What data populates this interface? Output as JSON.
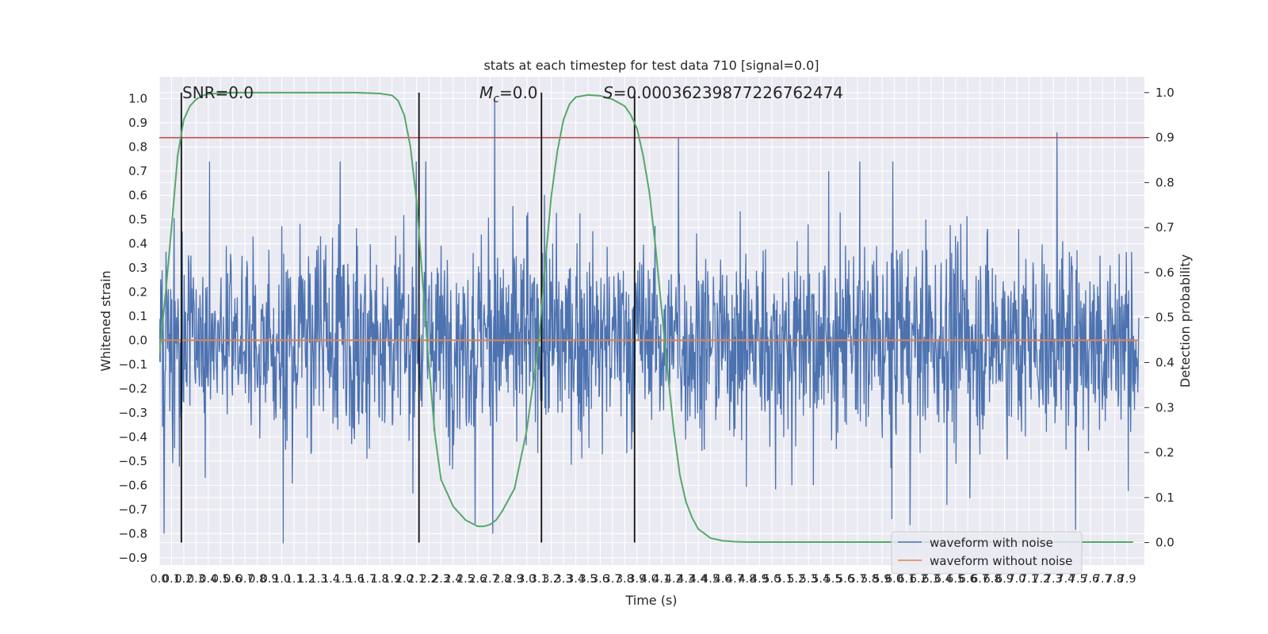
{
  "chart_data": {
    "type": "line",
    "title": "stats at each timestep for test data 710 [signal=0.0]",
    "xlabel": "Time (s)",
    "ylabel_left": "Whitened strain",
    "ylabel_right": "Detection probability",
    "xlim": [
      0.0,
      8.0
    ],
    "ylim_left": [
      -0.93,
      1.09
    ],
    "ylim_right": [
      -0.05,
      1.035
    ],
    "left_ticks": [
      1.0,
      0.9,
      0.8,
      0.7,
      0.6,
      0.5,
      0.4,
      0.3,
      0.2,
      0.1,
      0.0,
      -0.1,
      -0.2,
      -0.3,
      -0.4,
      -0.5,
      -0.6,
      -0.7,
      -0.8,
      -0.9
    ],
    "left_tick_labels": [
      "1.0",
      "0.9",
      "0.8",
      "0.7",
      "0.6",
      "0.5",
      "0.4",
      "0.3",
      "0.2",
      "0.1",
      "0.0",
      "−0.1",
      "−0.2",
      "−0.3",
      "−0.4",
      "−0.5",
      "−0.6",
      "−0.7",
      "−0.8",
      "−0.9"
    ],
    "right_ticks": [
      1.0,
      0.9,
      0.8,
      0.7,
      0.6,
      0.5,
      0.4,
      0.3,
      0.2,
      0.1,
      0.0
    ],
    "right_tick_labels": [
      "1.0",
      "0.9",
      "0.8",
      "0.7",
      "0.6",
      "0.5",
      "0.4",
      "0.3",
      "0.2",
      "0.1",
      "0.0"
    ],
    "x_ticks_step": 0.1,
    "x_ticks_count": 80,
    "grid": true,
    "legend_position": "lower-right",
    "annotations": {
      "snr": "SNR=0.0",
      "mc_symbol": "M",
      "mc_sub": "c",
      "mc_value": "=0.0",
      "s_symbol": "S",
      "s_value": "=0.000362398772267624​74"
    },
    "series": [
      {
        "name": "waveform with noise",
        "color": "#4c72b0",
        "kind": "noise",
        "axis": "left",
        "sample_count": 2048,
        "amplitude_envelope": [
          -0.85,
          1.0
        ],
        "notable_peaks": [
          {
            "t": 2.74,
            "y": 1.0
          },
          {
            "t": 4.24,
            "y": 0.84
          },
          {
            "t": 7.33,
            "y": 0.86
          },
          {
            "t": 1.01,
            "y": -0.84
          },
          {
            "t": 2.58,
            "y": -0.76
          },
          {
            "t": 5.98,
            "y": -0.74
          }
        ]
      },
      {
        "name": "waveform without noise",
        "color": "#dd8452",
        "axis": "left",
        "x": [
          0.0,
          8.0
        ],
        "y": [
          0.0,
          0.0
        ]
      },
      {
        "name": "detection probability",
        "color": "#55a868",
        "axis": "right",
        "x": [
          0.0,
          0.05,
          0.1,
          0.15,
          0.2,
          0.25,
          0.3,
          0.35,
          0.4,
          0.5,
          0.6,
          0.7,
          0.8,
          1.0,
          1.2,
          1.4,
          1.6,
          1.8,
          1.9,
          1.95,
          2.0,
          2.05,
          2.1,
          2.15,
          2.2,
          2.25,
          2.3,
          2.4,
          2.5,
          2.6,
          2.65,
          2.7,
          2.75,
          2.8,
          2.9,
          3.0,
          3.1,
          3.15,
          3.2,
          3.25,
          3.3,
          3.35,
          3.4,
          3.5,
          3.6,
          3.7,
          3.8,
          3.85,
          3.9,
          3.95,
          4.0,
          4.05,
          4.1,
          4.15,
          4.2,
          4.25,
          4.3,
          4.35,
          4.4,
          4.5,
          4.6,
          4.7,
          4.8,
          5.0,
          5.5,
          6.0,
          6.5,
          7.0,
          7.5,
          7.95
        ],
        "y": [
          0.42,
          0.55,
          0.7,
          0.86,
          0.94,
          0.97,
          0.985,
          0.993,
          0.997,
          0.999,
          1.0,
          1.0,
          1.0,
          1.0,
          1.0,
          1.0,
          1.0,
          0.998,
          0.994,
          0.982,
          0.95,
          0.88,
          0.76,
          0.58,
          0.4,
          0.24,
          0.14,
          0.08,
          0.05,
          0.036,
          0.036,
          0.04,
          0.05,
          0.07,
          0.12,
          0.25,
          0.45,
          0.62,
          0.77,
          0.87,
          0.94,
          0.975,
          0.99,
          0.995,
          0.993,
          0.985,
          0.97,
          0.95,
          0.92,
          0.86,
          0.78,
          0.66,
          0.52,
          0.38,
          0.25,
          0.15,
          0.09,
          0.055,
          0.03,
          0.01,
          0.004,
          0.002,
          0.001,
          0.001,
          0.001,
          0.001,
          0.001,
          0.001,
          0.001,
          0.001
        ]
      }
    ],
    "threshold_line": {
      "axis": "right",
      "y": 0.9,
      "color": "#c44e52"
    },
    "vertical_lines": [
      0.18,
      2.12,
      3.12,
      3.88
    ],
    "vertical_line_range_right": [
      0.0,
      1.0
    ],
    "legend": [
      {
        "label": "waveform with noise",
        "color": "#4c72b0"
      },
      {
        "label": "waveform without noise",
        "color": "#dd8452"
      }
    ]
  }
}
